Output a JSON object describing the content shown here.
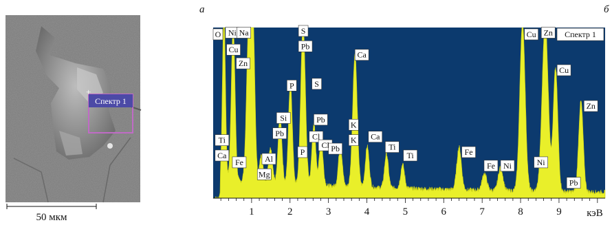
{
  "panels": {
    "left_letter": "а",
    "right_letter": "б"
  },
  "sem": {
    "spectrum_label": "Спектр 1",
    "scale_bar_label": "50 мкм"
  },
  "spectrum": {
    "legend": "Спектр 1",
    "x_unit": "кэВ",
    "colors": {
      "background": "#0c3a6e",
      "fill": "#e9ef2a",
      "edge": "#c7cc14"
    }
  },
  "chart_data": {
    "type": "area",
    "title": "",
    "xlabel": "кэВ",
    "ylabel": "",
    "xlim": [
      0,
      10.2
    ],
    "ylim": [
      0,
      100
    ],
    "x_ticks": [
      1,
      2,
      3,
      4,
      5,
      6,
      7,
      8,
      9
    ],
    "x_tick_labels": [
      "1",
      "2",
      "3",
      "4",
      "5",
      "6",
      "7",
      "8",
      "9"
    ],
    "legend_text": "Спектр 1",
    "background": 8,
    "peaks": [
      {
        "x": 0.28,
        "h": 100,
        "w": 0.04
      },
      {
        "x": 0.52,
        "h": 92,
        "w": 0.05
      },
      {
        "x": 0.93,
        "h": 95,
        "w": 0.06
      },
      {
        "x": 1.04,
        "h": 85,
        "w": 0.05
      },
      {
        "x": 1.25,
        "h": 16,
        "w": 0.05
      },
      {
        "x": 1.49,
        "h": 20,
        "w": 0.05
      },
      {
        "x": 1.74,
        "h": 40,
        "w": 0.05
      },
      {
        "x": 2.01,
        "h": 60,
        "w": 0.05
      },
      {
        "x": 2.34,
        "h": 96,
        "w": 0.06
      },
      {
        "x": 2.62,
        "h": 36,
        "w": 0.05
      },
      {
        "x": 2.81,
        "h": 26,
        "w": 0.05
      },
      {
        "x": 3.31,
        "h": 24,
        "w": 0.05
      },
      {
        "x": 3.69,
        "h": 78,
        "w": 0.06
      },
      {
        "x": 4.01,
        "h": 24,
        "w": 0.05
      },
      {
        "x": 4.51,
        "h": 20,
        "w": 0.05
      },
      {
        "x": 4.93,
        "h": 14,
        "w": 0.05
      },
      {
        "x": 6.4,
        "h": 25,
        "w": 0.06
      },
      {
        "x": 7.06,
        "h": 10,
        "w": 0.06
      },
      {
        "x": 7.48,
        "h": 14,
        "w": 0.06
      },
      {
        "x": 8.05,
        "h": 100,
        "w": 0.07
      },
      {
        "x": 8.64,
        "h": 100,
        "w": 0.08
      },
      {
        "x": 8.91,
        "h": 72,
        "w": 0.06
      },
      {
        "x": 9.57,
        "h": 53,
        "w": 0.06
      }
    ],
    "peak_labels": [
      {
        "text": "O",
        "x": 0.0,
        "y": 96
      },
      {
        "text": "Ni",
        "x": 0.32,
        "y": 97
      },
      {
        "text": "Na",
        "x": 0.62,
        "y": 97
      },
      {
        "text": "Cu",
        "x": 0.35,
        "y": 87
      },
      {
        "text": "Zn",
        "x": 0.6,
        "y": 79
      },
      {
        "text": "Ti",
        "x": 0.05,
        "y": 34
      },
      {
        "text": "Ca",
        "x": 0.05,
        "y": 25
      },
      {
        "text": "Fe",
        "x": 0.5,
        "y": 21
      },
      {
        "text": "Al",
        "x": 1.27,
        "y": 23
      },
      {
        "text": "Mg",
        "x": 1.15,
        "y": 14
      },
      {
        "text": "Si",
        "x": 1.65,
        "y": 47
      },
      {
        "text": "Pb",
        "x": 1.55,
        "y": 38
      },
      {
        "text": "P",
        "x": 1.92,
        "y": 66
      },
      {
        "text": "P",
        "x": 2.2,
        "y": 27
      },
      {
        "text": "S",
        "x": 2.22,
        "y": 98
      },
      {
        "text": "Pb",
        "x": 2.22,
        "y": 89
      },
      {
        "text": "S",
        "x": 2.57,
        "y": 67
      },
      {
        "text": "Pb",
        "x": 2.62,
        "y": 46
      },
      {
        "text": "Cl",
        "x": 2.5,
        "y": 36
      },
      {
        "text": "Cl",
        "x": 2.74,
        "y": 31
      },
      {
        "text": "Pb",
        "x": 3.0,
        "y": 29
      },
      {
        "text": "K",
        "x": 3.53,
        "y": 43
      },
      {
        "text": "K",
        "x": 3.53,
        "y": 34
      },
      {
        "text": "Ca",
        "x": 3.69,
        "y": 84
      },
      {
        "text": "Ca",
        "x": 4.04,
        "y": 36
      },
      {
        "text": "Ti",
        "x": 4.48,
        "y": 30
      },
      {
        "text": "Ti",
        "x": 4.95,
        "y": 25
      },
      {
        "text": "Fe",
        "x": 6.47,
        "y": 27
      },
      {
        "text": "Fe",
        "x": 7.05,
        "y": 19
      },
      {
        "text": "Ni",
        "x": 7.48,
        "y": 19
      },
      {
        "text": "Cu",
        "x": 8.1,
        "y": 96
      },
      {
        "text": "Zn",
        "x": 8.54,
        "y": 97
      },
      {
        "text": "Cu",
        "x": 8.95,
        "y": 75
      },
      {
        "text": "Ni",
        "x": 8.35,
        "y": 21
      },
      {
        "text": "Zn",
        "x": 9.65,
        "y": 54
      },
      {
        "text": "Pb",
        "x": 9.2,
        "y": 9
      }
    ]
  }
}
